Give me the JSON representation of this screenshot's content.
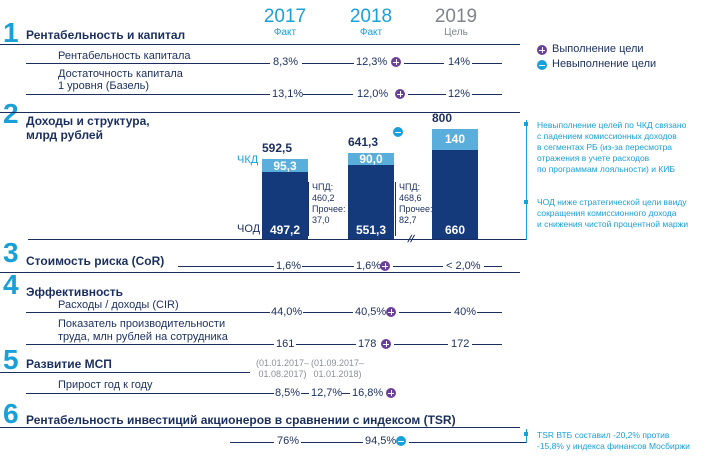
{
  "columns": {
    "y2017": {
      "year": "2017",
      "label": "Факт"
    },
    "y2018": {
      "year": "2018",
      "label": "Факт"
    },
    "y2019": {
      "year": "2019",
      "label": "Цель"
    }
  },
  "legend": {
    "achieved": "Выполнение цели",
    "not_achieved": "Невыполнение цели"
  },
  "s1": {
    "num": "1",
    "title": "Рентабельность и капитал",
    "row1": {
      "label": "Рентабельность капитала",
      "v2017": "8,3%",
      "v2018": "12,3%",
      "v2019": "14%"
    },
    "row2": {
      "label1": "Достаточность капитала",
      "label2": "1 уровня (Базель)",
      "v2017": "13,1%",
      "v2018": "12,0%",
      "v2019": "12%"
    }
  },
  "s2": {
    "num": "2",
    "title1": "Доходы и структура,",
    "title2": "млрд рублей",
    "chkd": "ЧКД",
    "chod": "ЧОД",
    "chart_data": {
      "type": "bar",
      "categories": [
        "2017",
        "2018",
        "2019"
      ],
      "series": [
        {
          "name": "ЧОД",
          "values": [
            497.2,
            551.3,
            660
          ]
        },
        {
          "name": "ЧКД",
          "values": [
            95.3,
            90.0,
            140
          ]
        }
      ],
      "totals": [
        592.5,
        641.3,
        800
      ],
      "labels": {
        "chod": [
          "497,2",
          "551,3",
          "660"
        ],
        "chkd": [
          "95,3",
          "90,0",
          "140"
        ],
        "totals": [
          "592,5",
          "641,3",
          "800"
        ]
      }
    },
    "note2017": {
      "l1": "ЧПД:",
      "l2": "460,2",
      "l3": "Прочее:",
      "l4": "37,0"
    },
    "note2018": {
      "l1": "ЧПД:",
      "l2": "468,6",
      "l3": "Прочее:",
      "l4": "82,7"
    },
    "comment1": [
      "Невыполнение целей по ЧКД связано",
      "с падением комиссионных доходов",
      "в сегментах РБ (из-за пересмотра",
      "отражения в учете расходов",
      "по программам лояльности) и  КИБ"
    ],
    "comment2": [
      "ЧОД ниже стратегической цели ввиду",
      "сокращения комиссионного дохода",
      "и снижения чистой процентной маржи"
    ]
  },
  "s3": {
    "num": "3",
    "title": "Стоимость риска (CoR)",
    "v2017": "1,6%",
    "v2018": "1,6%",
    "v2019": "< 2,0%"
  },
  "s4": {
    "num": "4",
    "title": "Эффективность",
    "row1": {
      "label": "Расходы / доходы (CIR)",
      "v2017": "44,0%",
      "v2018": "40,5%",
      "v2019": "40%"
    },
    "row2": {
      "label1": "Показатель производительности",
      "label2": "труда, млн рублей на сотрудника",
      "v2017": "161",
      "v2018": "178",
      "v2019": "172"
    }
  },
  "s5": {
    "num": "5",
    "title": "Развитие МСП",
    "p1a": "(01.01.2017–",
    "p1b": "01.08.2017)",
    "p2a": "(01.09.2017–",
    "p2b": "01.01.2018)",
    "row": {
      "label": "Прирост год к году",
      "v1": "8,5%",
      "v2": "12,7%",
      "v3": "16,8%"
    }
  },
  "s6": {
    "num": "6",
    "title": "Рентабельность инвестиций акционеров в сравнении с индексом (TSR)",
    "v2017": "76%",
    "v2018": "94,5%",
    "comment": [
      "TSR ВТБ составил -20,2% против",
      "-15,8% у индекса финансов Мосбиржи"
    ]
  }
}
